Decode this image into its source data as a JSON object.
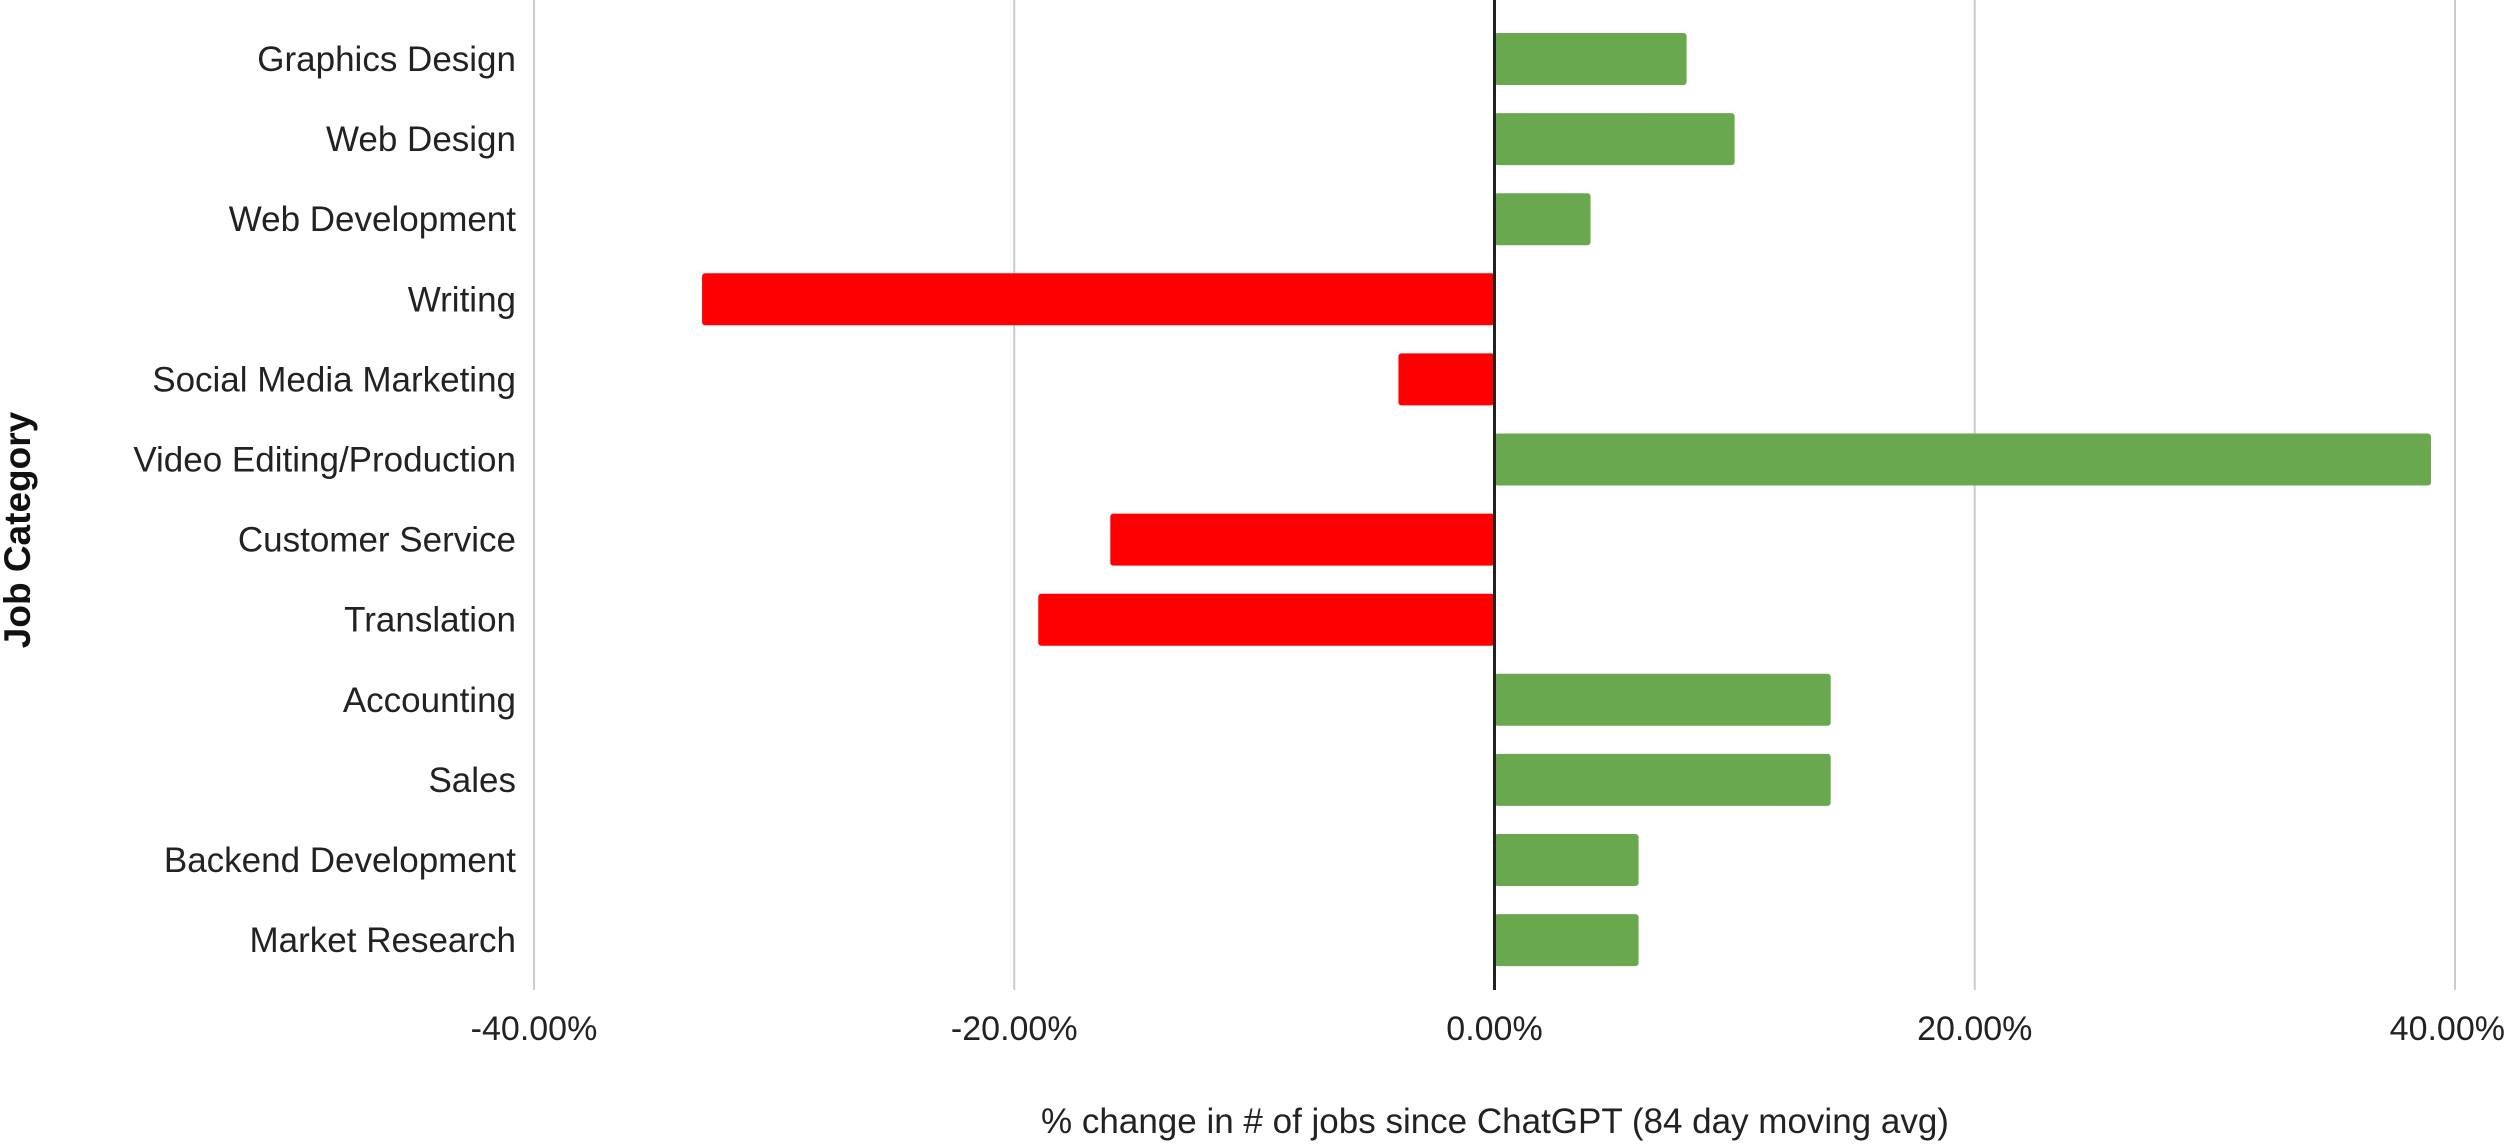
{
  "chart_data": {
    "type": "bar",
    "orientation": "horizontal",
    "categories": [
      "Graphics Design",
      "Web Design",
      "Web Development",
      "Writing",
      "Social Media Marketing",
      "Video Editing/Production",
      "Customer Service",
      "Translation",
      "Accounting",
      "Sales",
      "Backend Development",
      "Market Research"
    ],
    "values": [
      8,
      10,
      4,
      -33,
      -4,
      39,
      -16,
      -19,
      14,
      14,
      6,
      6
    ],
    "xlabel": "% change in # of jobs since ChatGPT (84 day moving avg)",
    "ylabel": "Job Category",
    "xlim": [
      -40,
      40
    ],
    "x_ticks": [
      -40,
      -20,
      0,
      20,
      40
    ],
    "x_tick_labels": [
      "-40.00%",
      "-20.00%",
      "0.00%",
      "20.00%",
      "40.00%"
    ],
    "grid": true,
    "legend": "none",
    "colors": {
      "positive": "#6aa84f",
      "negative": "#ff0000",
      "gridline": "#cccccc",
      "zero_line": "#222222"
    }
  }
}
